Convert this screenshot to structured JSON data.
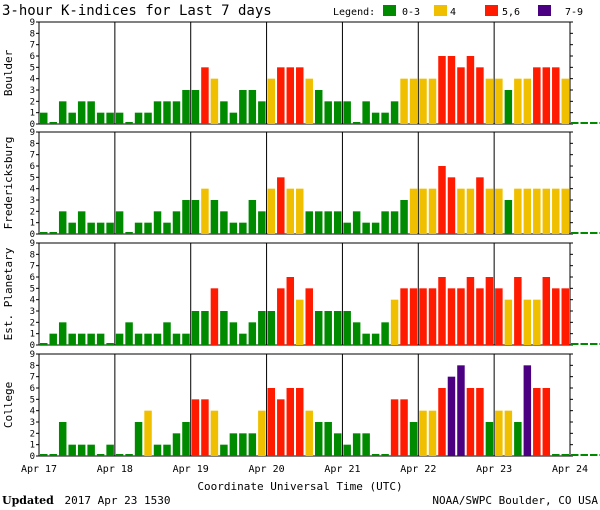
{
  "chart_data": {
    "type": "bar",
    "title": "3-hour K-indices for Last 7 days",
    "legend": {
      "label": "Legend:",
      "items": [
        {
          "label": "0-3",
          "color": "#008a00"
        },
        {
          "label": "4",
          "color": "#f0c000"
        },
        {
          "label": "5,6",
          "color": "#ff1a00"
        },
        {
          "label": "7-9",
          "color": "#4b0082"
        }
      ]
    },
    "xlabel": "Coordinate Universal Time (UTC)",
    "x_ticks": [
      "Apr 17",
      "Apr 18",
      "Apr 19",
      "Apr 20",
      "Apr 21",
      "Apr 22",
      "Apr 23",
      "Apr 24"
    ],
    "ylim": [
      0,
      9
    ],
    "y_ticks": [
      0,
      1,
      2,
      3,
      4,
      5,
      6,
      7,
      8,
      9
    ],
    "interval_hours": 3,
    "panels": [
      {
        "name": "Boulder",
        "values": [
          1,
          0,
          2,
          1,
          2,
          2,
          1,
          1,
          1,
          0,
          1,
          1,
          2,
          2,
          2,
          3,
          3,
          5,
          4,
          2,
          1,
          3,
          3,
          2,
          4,
          5,
          5,
          5,
          4,
          3,
          2,
          2,
          2,
          0,
          2,
          1,
          1,
          2,
          4,
          4,
          4,
          4,
          6,
          6,
          5,
          6,
          5,
          4,
          4,
          3,
          4,
          4,
          5,
          5,
          5,
          4,
          0,
          0,
          0,
          0
        ]
      },
      {
        "name": "Fredericksburg",
        "values": [
          0,
          0,
          2,
          1,
          2,
          1,
          1,
          1,
          2,
          0,
          1,
          1,
          2,
          1,
          2,
          3,
          3,
          4,
          3,
          2,
          1,
          1,
          3,
          2,
          4,
          5,
          4,
          4,
          2,
          2,
          2,
          2,
          1,
          2,
          1,
          1,
          2,
          2,
          3,
          4,
          4,
          4,
          6,
          5,
          4,
          4,
          5,
          4,
          4,
          3,
          4,
          4,
          4,
          4,
          4,
          4,
          0,
          0,
          0,
          0
        ]
      },
      {
        "name": "Est. Planetary",
        "values": [
          0,
          1,
          2,
          1,
          1,
          1,
          1,
          0,
          1,
          2,
          1,
          1,
          1,
          2,
          1,
          1,
          3,
          3,
          5,
          3,
          2,
          1,
          2,
          3,
          3,
          5,
          6,
          4,
          5,
          3,
          3,
          3,
          3,
          2,
          1,
          1,
          2,
          4,
          5,
          5,
          5,
          5,
          6,
          5,
          5,
          6,
          5,
          6,
          5,
          4,
          6,
          4,
          4,
          6,
          5,
          5,
          0,
          0,
          0,
          0
        ]
      },
      {
        "name": "College",
        "values": [
          0,
          0,
          3,
          1,
          1,
          1,
          0,
          1,
          0,
          0,
          3,
          4,
          1,
          1,
          2,
          3,
          5,
          5,
          4,
          1,
          2,
          2,
          2,
          4,
          6,
          5,
          6,
          6,
          4,
          3,
          3,
          2,
          1,
          2,
          2,
          0,
          0,
          5,
          5,
          3,
          4,
          4,
          6,
          7,
          8,
          6,
          6,
          3,
          4,
          4,
          3,
          8,
          6,
          6,
          0,
          0,
          0,
          0,
          0,
          0
        ]
      }
    ]
  },
  "footer": {
    "updated_label": "Updated",
    "updated_value": "2017 Apr 23 1530",
    "source": "NOAA/SWPC Boulder, CO USA"
  }
}
